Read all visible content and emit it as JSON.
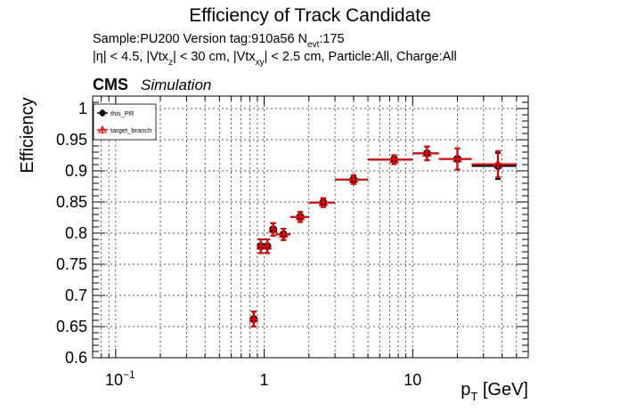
{
  "chart_data": {
    "type": "scatter",
    "title": "Efficiency of Track Candidate",
    "info": {
      "sample_line": {
        "prefix": "Sample:PU200   Version tag:910a56  N",
        "sub": "evt",
        "suffix": ":175"
      },
      "cuts_line": [
        {
          "t": "|η| < 4.5, |Vtx"
        },
        {
          "t": "z",
          "sub": true
        },
        {
          "t": "| < 30 cm, |Vtx"
        },
        {
          "t": "xy",
          "sub": true
        },
        {
          "t": "| < 2.5 cm, Particle:All, Charge:All"
        }
      ]
    },
    "cms_label": "CMS",
    "cms_sublabel": "Simulation",
    "ylabel": "Efficiency",
    "xlabel": {
      "main": "p",
      "sub": "T",
      "suffix": " [GeV]"
    },
    "xscale": "log",
    "xlim": [
      0.07,
      60
    ],
    "ylim": [
      0.6,
      1.02
    ],
    "grid": true,
    "legend_position": "top-left",
    "x_ticks": [
      {
        "v": 0.1,
        "base": "10",
        "exp": "−1"
      },
      {
        "v": 1,
        "base": "1",
        "exp": ""
      },
      {
        "v": 10,
        "base": "10",
        "exp": ""
      }
    ],
    "y_ticks": [
      {
        "v": 0.6,
        "label": "0.6"
      },
      {
        "v": 0.65,
        "label": "0.65"
      },
      {
        "v": 0.7,
        "label": "0.7"
      },
      {
        "v": 0.75,
        "label": "0.75"
      },
      {
        "v": 0.8,
        "label": "0.8"
      },
      {
        "v": 0.85,
        "label": "0.85"
      },
      {
        "v": 0.9,
        "label": "0.9"
      },
      {
        "v": 0.95,
        "label": "0.95"
      },
      {
        "v": 1.0,
        "label": "1"
      }
    ],
    "series": [
      {
        "name": "this_PR",
        "color": "#000000",
        "marker": "circle",
        "points": [
          {
            "x": 0.85,
            "xlo": 0.8,
            "xhi": 0.9,
            "y": 0.662,
            "err": 0.012
          },
          {
            "x": 0.95,
            "xlo": 0.9,
            "xhi": 1.0,
            "y": 0.779,
            "err": 0.011
          },
          {
            "x": 1.05,
            "xlo": 1.0,
            "xhi": 1.1,
            "y": 0.779,
            "err": 0.011
          },
          {
            "x": 1.15,
            "xlo": 1.1,
            "xhi": 1.2,
            "y": 0.806,
            "err": 0.01
          },
          {
            "x": 1.35,
            "xlo": 1.2,
            "xhi": 1.5,
            "y": 0.798,
            "err": 0.009
          },
          {
            "x": 1.75,
            "xlo": 1.5,
            "xhi": 2.0,
            "y": 0.826,
            "err": 0.008
          },
          {
            "x": 2.5,
            "xlo": 2.0,
            "xhi": 3.0,
            "y": 0.849,
            "err": 0.007
          },
          {
            "x": 4.0,
            "xlo": 3.0,
            "xhi": 5.0,
            "y": 0.886,
            "err": 0.007
          },
          {
            "x": 7.5,
            "xlo": 5.0,
            "xhi": 10.0,
            "y": 0.918,
            "err": 0.007
          },
          {
            "x": 12.5,
            "xlo": 10.0,
            "xhi": 15.0,
            "y": 0.928,
            "err": 0.011
          },
          {
            "x": 20.0,
            "xlo": 15.0,
            "xhi": 25.0,
            "y": 0.919,
            "err": 0.017
          },
          {
            "x": 37.5,
            "xlo": 25.0,
            "xhi": 50.0,
            "y": 0.908,
            "err": 0.021
          }
        ]
      },
      {
        "name": "target_branch",
        "color": "#ff0000",
        "marker": "triangle-open",
        "points": [
          {
            "x": 0.85,
            "xlo": 0.8,
            "xhi": 0.9,
            "y": 0.662,
            "err": 0.012
          },
          {
            "x": 0.95,
            "xlo": 0.9,
            "xhi": 1.0,
            "y": 0.779,
            "err": 0.011
          },
          {
            "x": 1.05,
            "xlo": 1.0,
            "xhi": 1.1,
            "y": 0.779,
            "err": 0.011
          },
          {
            "x": 1.15,
            "xlo": 1.1,
            "xhi": 1.2,
            "y": 0.806,
            "err": 0.01
          },
          {
            "x": 1.35,
            "xlo": 1.2,
            "xhi": 1.5,
            "y": 0.798,
            "err": 0.009
          },
          {
            "x": 1.75,
            "xlo": 1.5,
            "xhi": 2.0,
            "y": 0.826,
            "err": 0.008
          },
          {
            "x": 2.5,
            "xlo": 2.0,
            "xhi": 3.0,
            "y": 0.849,
            "err": 0.007
          },
          {
            "x": 4.0,
            "xlo": 3.0,
            "xhi": 5.0,
            "y": 0.886,
            "err": 0.007
          },
          {
            "x": 7.5,
            "xlo": 5.0,
            "xhi": 10.0,
            "y": 0.918,
            "err": 0.007
          },
          {
            "x": 12.5,
            "xlo": 10.0,
            "xhi": 15.0,
            "y": 0.928,
            "err": 0.011
          },
          {
            "x": 20.0,
            "xlo": 15.0,
            "xhi": 25.0,
            "y": 0.919,
            "err": 0.017
          },
          {
            "x": 37.5,
            "xlo": 25.0,
            "xhi": 50.0,
            "y": 0.911,
            "err": 0.021
          }
        ]
      }
    ]
  }
}
